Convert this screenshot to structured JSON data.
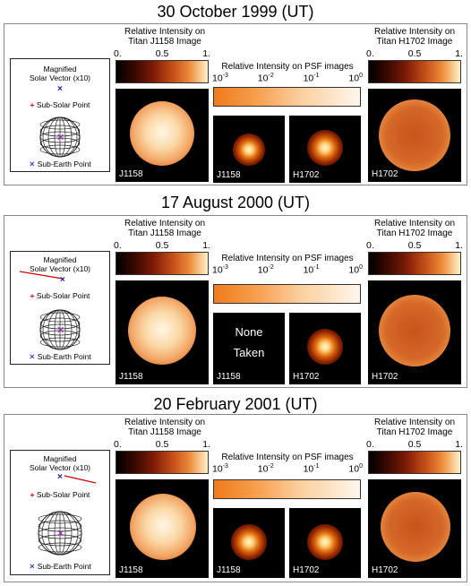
{
  "panels": [
    {
      "title": "30 October 1999 (UT)",
      "geometry": {
        "solar_vector_label": "Magnified\nSolar Vector (x10)",
        "sub_solar_label": "Sub-Solar Point",
        "sub_earth_label": "Sub-Earth Point"
      },
      "titan_left_label": "Relative Intensity on\nTitan J1158 Image",
      "titan_right_label": "Relative Intensity on\nTitan H1702 Image",
      "titan_ticks": [
        "0.",
        "0.5",
        "1."
      ],
      "psf_label": "Relative Intensity on PSF images",
      "psf_ticks": [
        "10",
        "10",
        "10",
        "10"
      ],
      "psf_exps": [
        "-3",
        "-2",
        "-1",
        "0"
      ],
      "images": {
        "j1158": "J1158",
        "psf_j1158": "J1158",
        "psf_h1702": "H1702",
        "h1702": "H1702"
      },
      "psf_j_none": false
    },
    {
      "title": "17 August 2000 (UT)",
      "geometry": {
        "solar_vector_label": "Magnified\nSolar Vector (x10)",
        "sub_solar_label": "Sub-Solar Point",
        "sub_earth_label": "Sub-Earth Point"
      },
      "titan_left_label": "Relative Intensity on\nTitan J1158 Image",
      "titan_right_label": "Relative Intensity on\nTitan H1702 Image",
      "titan_ticks": [
        "0.",
        "0.5",
        "1."
      ],
      "psf_label": "Relative Intensity on PSF images",
      "psf_ticks": [
        "10",
        "10",
        "10",
        "10"
      ],
      "psf_exps": [
        "-3",
        "-2",
        "-1",
        "0"
      ],
      "images": {
        "j1158": "J1158",
        "psf_j1158": "J1158",
        "psf_h1702": "H1702",
        "h1702": "H1702"
      },
      "psf_j_none": true,
      "none_text": [
        "None",
        "Taken"
      ]
    },
    {
      "title": "20 February 2001 (UT)",
      "geometry": {
        "solar_vector_label": "Magnified\nSolar Vector (x10)",
        "sub_solar_label": "Sub-Solar Point",
        "sub_earth_label": "Sub-Earth Point"
      },
      "titan_left_label": "Relative Intensity on\nTitan J1158 Image",
      "titan_right_label": "Relative Intensity on\nTitan H1702 Image",
      "titan_ticks": [
        "0.",
        "0.5",
        "1."
      ],
      "psf_label": "Relative Intensity on PSF images",
      "psf_ticks": [
        "10",
        "10",
        "10",
        "10"
      ],
      "psf_exps": [
        "-3",
        "-2",
        "-1",
        "0"
      ],
      "images": {
        "j1158": "J1158",
        "psf_j1158": "J1158",
        "psf_h1702": "H1702",
        "h1702": "H1702"
      },
      "psf_j_none": false
    }
  ],
  "icons": {
    "sub_solar_marker": "plus-icon",
    "sub_earth_marker": "x-icon"
  },
  "colors": {
    "sub_solar": "#cc0000",
    "sub_earth": "#1a1aa8",
    "solar_vector": "#cc0000"
  }
}
